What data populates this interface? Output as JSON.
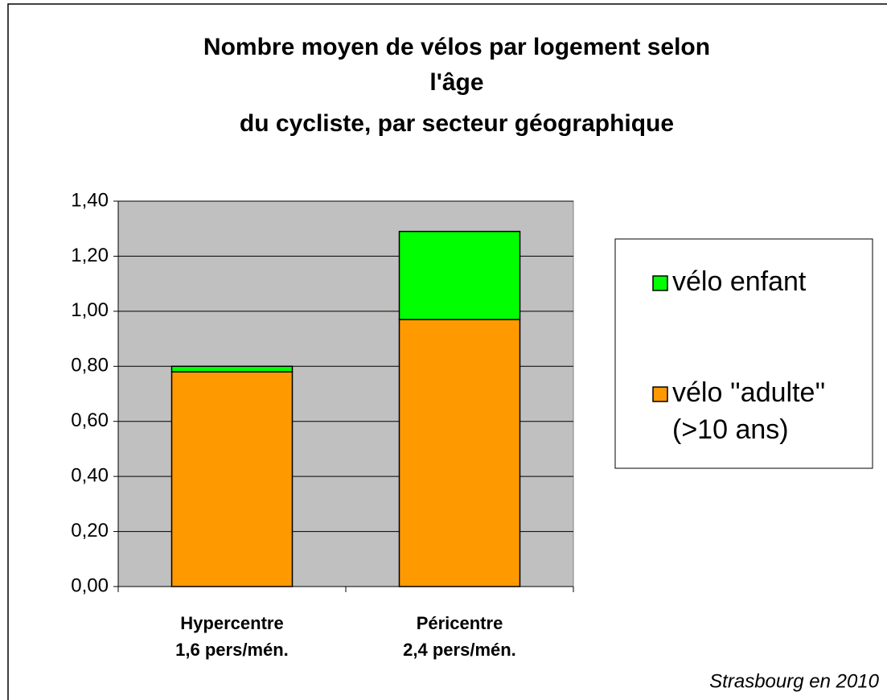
{
  "chart_data": {
    "type": "stacked_bar",
    "title": [
      "Nombre moyen de vélos par logement selon",
      "l'âge",
      "du cycliste,  par secteur géographique"
    ],
    "categories": [
      "Hypercentre\n1,6 pers/mén.",
      "Péricentre\n2,4 pers/mén."
    ],
    "series": [
      {
        "name": "vélo ''adulte''\n(>10 ans)",
        "color": "#ff9900",
        "values": [
          0.78,
          0.97
        ]
      },
      {
        "name": "vélo enfant",
        "color": "#00ff00",
        "values": [
          0.02,
          0.32
        ]
      }
    ],
    "ylim": [
      0,
      1.4
    ],
    "yticks": [
      {
        "value": 0,
        "label": "0,00"
      },
      {
        "value": 0.2,
        "label": "0,20"
      },
      {
        "value": 0.4,
        "label": "0,40"
      },
      {
        "value": 0.6,
        "label": "0,60"
      },
      {
        "value": 0.8,
        "label": "0,80"
      },
      {
        "value": 1.0,
        "label": "1,00"
      },
      {
        "value": 1.2,
        "label": "1,20"
      },
      {
        "value": 1.4,
        "label": "1,40"
      }
    ],
    "grid": true,
    "legend": "right",
    "annotation": "Strasbourg en 2010"
  }
}
